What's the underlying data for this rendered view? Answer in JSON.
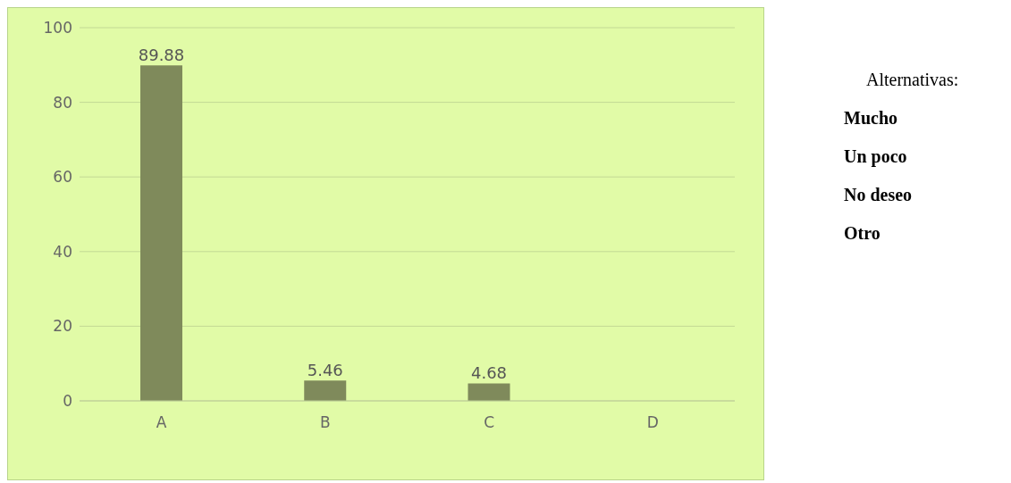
{
  "chart_data": {
    "type": "bar",
    "categories": [
      "A",
      "B",
      "C",
      "D"
    ],
    "values": [
      89.88,
      5.46,
      4.68,
      null
    ],
    "color": "#7f8a5b",
    "ylim": [
      0,
      100
    ],
    "yticks": [
      0,
      20,
      40,
      60,
      80,
      100
    ],
    "grid": "y",
    "data_labels": true,
    "annotations": [
      "Alternativas:",
      "Mucho",
      "Un poco",
      "No deseo",
      "Otro"
    ]
  }
}
